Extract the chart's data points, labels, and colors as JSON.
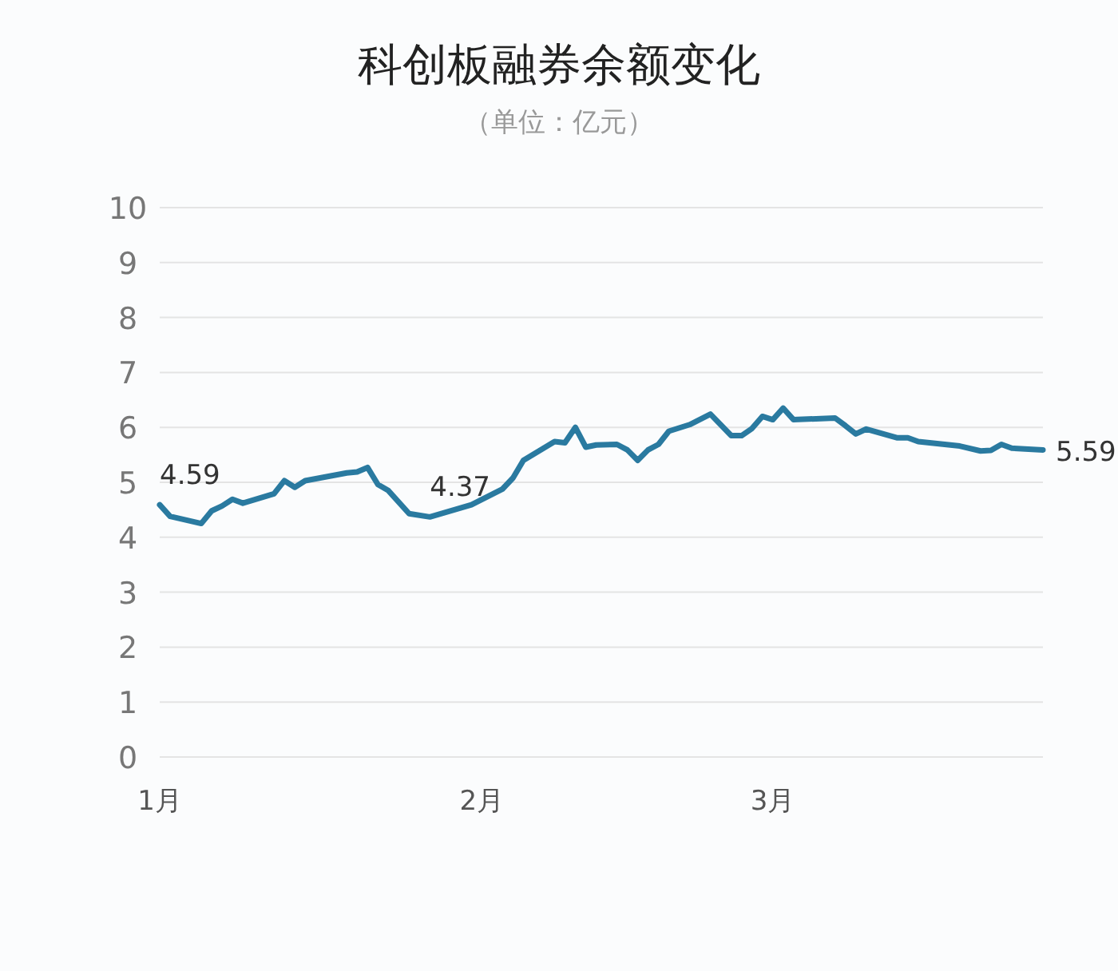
{
  "chart_data": {
    "type": "line",
    "title": "科创板融券余额变化",
    "subtitle": "（单位：亿元）",
    "x": [
      "--01-01",
      "--01-02",
      "--01-05",
      "--01-06",
      "--01-07",
      "--01-08",
      "--01-09",
      "--01-12",
      "--01-13",
      "--01-14",
      "--01-15",
      "--01-19",
      "--01-20",
      "--01-21",
      "--01-22",
      "--01-23",
      "--01-25",
      "--01-27",
      "--01-31",
      "--02-03",
      "--02-04",
      "--02-05",
      "--02-08",
      "--02-09",
      "--02-10",
      "--02-11",
      "--02-12",
      "--02-14",
      "--02-15",
      "--02-16",
      "--02-17",
      "--02-18",
      "--02-19",
      "--02-21",
      "--02-23",
      "--02-25",
      "--02-26",
      "--02-27",
      "--02-28",
      "--03-01",
      "--03-02",
      "--03-03",
      "--03-07",
      "--03-08",
      "--03-09",
      "--03-10",
      "--03-13",
      "--03-14",
      "--03-15",
      "--03-19",
      "--03-21",
      "--03-22",
      "--03-23",
      "--03-24",
      "--03-27"
    ],
    "values": [
      4.59,
      4.38,
      4.25,
      4.48,
      4.57,
      4.69,
      4.62,
      4.79,
      5.03,
      4.91,
      5.03,
      5.17,
      5.19,
      5.27,
      4.96,
      4.85,
      4.43,
      4.37,
      4.59,
      4.88,
      5.08,
      5.4,
      5.74,
      5.72,
      6.0,
      5.64,
      5.68,
      5.69,
      5.59,
      5.4,
      5.59,
      5.69,
      5.93,
      6.05,
      6.24,
      5.85,
      5.85,
      5.98,
      6.2,
      6.14,
      6.35,
      6.14,
      6.17,
      6.03,
      5.88,
      5.97,
      5.81,
      5.81,
      5.74,
      5.66,
      5.57,
      5.58,
      5.69,
      5.62,
      5.59
    ],
    "color": "#2a7aa0",
    "xlim": [
      "--01-01",
      "--03-27"
    ],
    "xticks": [
      {
        "value": "--01-01",
        "label": "1月"
      },
      {
        "value": "--02-01",
        "label": "2月"
      },
      {
        "value": "--03-01",
        "label": "3月"
      }
    ],
    "ylim": [
      0,
      10
    ],
    "yticks": [
      0,
      1,
      2,
      3,
      4,
      5,
      6,
      7,
      8,
      9,
      10
    ],
    "grid": "y",
    "marker": "none",
    "line_style": "solid",
    "annotations": [
      {
        "text": "4.59",
        "x": "--01-01",
        "y": 4.59
      },
      {
        "text": "4.37",
        "x": "--01-27",
        "y": 4.37
      },
      {
        "text": "5.59",
        "x": "--03-27",
        "y": 5.59
      }
    ]
  }
}
